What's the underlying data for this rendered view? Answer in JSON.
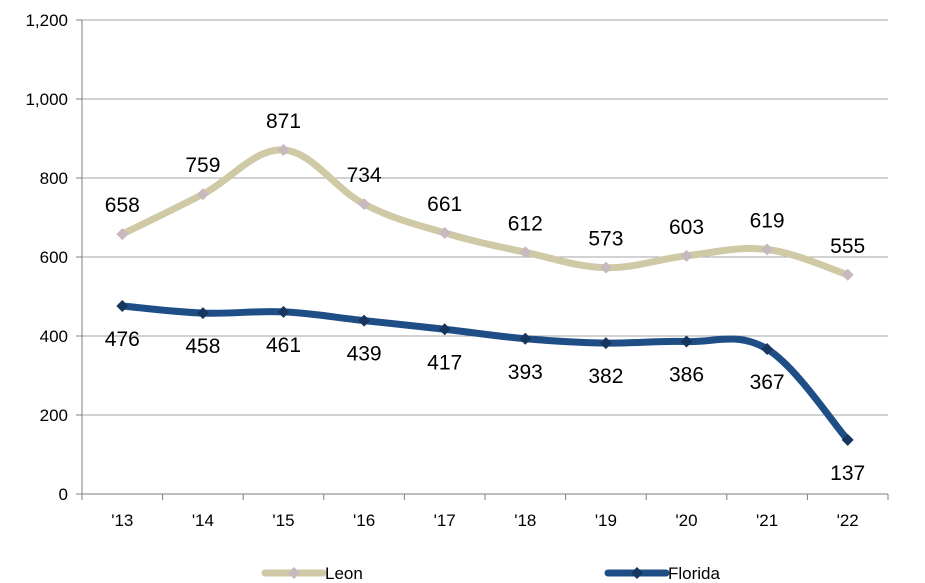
{
  "chart_data": {
    "type": "line",
    "categories": [
      "'13",
      "'14",
      "'15",
      "'16",
      "'17",
      "'18",
      "'19",
      "'20",
      "'21",
      "'22"
    ],
    "series": [
      {
        "name": "Leon",
        "color": "#cfc9a6",
        "marker_color": "#c8b9bf",
        "values": [
          658,
          759,
          871,
          734,
          661,
          612,
          573,
          603,
          619,
          555
        ]
      },
      {
        "name": "Florida",
        "color": "#1f4e86",
        "marker_color": "#17365d",
        "values": [
          476,
          458,
          461,
          439,
          417,
          393,
          382,
          386,
          367,
          137
        ]
      }
    ],
    "ylim": [
      0,
      1200
    ],
    "yticks": [
      0,
      200,
      400,
      600,
      800,
      1000,
      1200
    ],
    "ytick_labels": [
      "0",
      "200",
      "400",
      "600",
      "800",
      "1,000",
      "1,200"
    ],
    "grid": true,
    "smooth": true,
    "legend_position": "bottom"
  }
}
